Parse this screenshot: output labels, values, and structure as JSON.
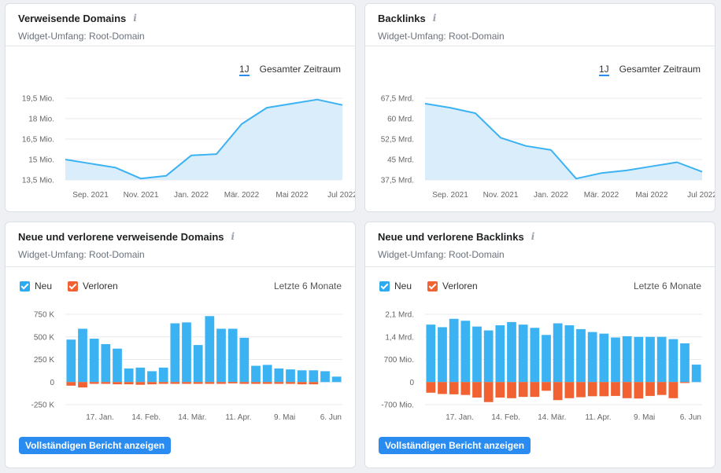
{
  "widgets": {
    "ref_domains": {
      "title": "Verweisende Domains",
      "info": "i",
      "scope": "Widget-Umfang: Root-Domain",
      "period_active": "1J",
      "period_other": "Gesamter Zeitraum"
    },
    "backlinks": {
      "title": "Backlinks",
      "info": "i",
      "scope": "Widget-Umfang: Root-Domain",
      "period_active": "1J",
      "period_other": "Gesamter Zeitraum"
    },
    "new_lost_domains": {
      "title": "Neue und verlorene verweisende Domains",
      "info": "i",
      "scope": "Widget-Umfang: Root-Domain",
      "legend_new": "Neu",
      "legend_lost": "Verloren",
      "range": "Letzte 6 Monate",
      "button": "Vollständigen Bericht anzeigen"
    },
    "new_lost_backlinks": {
      "title": "Neue und verlorene Backlinks",
      "info": "i",
      "scope": "Widget-Umfang: Root-Domain",
      "legend_new": "Neu",
      "legend_lost": "Verloren",
      "range": "Letzte 6 Monate",
      "button": "Vollständigen Bericht anzeigen"
    }
  },
  "colors": {
    "accent": "#2a8cf0",
    "line": "#3bb2f2",
    "area": "#daedfb",
    "new": "#3bb2f2",
    "lost": "#f26131"
  },
  "chart_data": [
    {
      "type": "area",
      "id": "ref_domains",
      "x": [
        "2021-08",
        "2021-09",
        "2021-10",
        "2021-11",
        "2021-12",
        "2022-01",
        "2022-02",
        "2022-03",
        "2022-04",
        "2022-05",
        "2022-06",
        "2022-07"
      ],
      "values": [
        15.0,
        14.7,
        14.4,
        13.6,
        13.8,
        15.3,
        15.4,
        17.6,
        18.8,
        19.1,
        19.4,
        19.0
      ],
      "yticks": [
        "19,5 Mio.",
        "18 Mio.",
        "16,5 Mio.",
        "15 Mio.",
        "13,5 Mio."
      ],
      "ytick_values": [
        19.5,
        18,
        16.5,
        15,
        13.5
      ],
      "ylim": [
        13.5,
        19.5
      ],
      "xticks": [
        "Sep. 2021",
        "Nov. 2021",
        "Jan. 2022",
        "Mär. 2022",
        "Mai 2022",
        "Jul 2022"
      ],
      "xtick_index": [
        1,
        3,
        5,
        7,
        9,
        11
      ]
    },
    {
      "type": "area",
      "id": "backlinks",
      "x": [
        "2021-08",
        "2021-09",
        "2021-10",
        "2021-11",
        "2021-12",
        "2022-01",
        "2022-02",
        "2022-03",
        "2022-04",
        "2022-05",
        "2022-06",
        "2022-07"
      ],
      "values": [
        65.5,
        64.0,
        62.0,
        53.0,
        50.0,
        48.5,
        38.0,
        40.0,
        41.0,
        42.5,
        44.0,
        40.5
      ],
      "yticks": [
        "67,5 Mrd.",
        "60 Mrd.",
        "52,5 Mrd.",
        "45 Mrd.",
        "37,5 Mrd."
      ],
      "ytick_values": [
        67.5,
        60,
        52.5,
        45,
        37.5
      ],
      "ylim": [
        37.5,
        67.5
      ],
      "xticks": [
        "Sep. 2021",
        "Nov. 2021",
        "Jan. 2022",
        "Mär. 2022",
        "Mai 2022",
        "Jul 2022"
      ],
      "xtick_index": [
        1,
        3,
        5,
        7,
        9,
        11
      ]
    },
    {
      "type": "bar",
      "id": "new_lost_domains",
      "series": [
        {
          "name": "Neu",
          "values": [
            470,
            590,
            480,
            420,
            370,
            150,
            160,
            120,
            160,
            650,
            660,
            410,
            730,
            590,
            590,
            490,
            180,
            190,
            150,
            140,
            130,
            130,
            120,
            60
          ]
        },
        {
          "name": "Verloren",
          "values": [
            -40,
            -60,
            -20,
            -20,
            -25,
            -25,
            -30,
            -25,
            -20,
            -20,
            -20,
            -20,
            -20,
            -20,
            -15,
            -20,
            -20,
            -20,
            -20,
            -20,
            -25,
            -25,
            0,
            0
          ]
        }
      ],
      "yticks": [
        "750 K",
        "500 K",
        "250 K",
        "0",
        "-250 K"
      ],
      "ytick_values": [
        750,
        500,
        250,
        0,
        -250
      ],
      "ylim": [
        -250,
        750
      ],
      "xticks": [
        "17. Jan.",
        "14. Feb.",
        "14. Mär.",
        "11. Apr.",
        "9. Mai",
        "6. Jun"
      ],
      "xtick_index": [
        2.5,
        6.5,
        10.5,
        14.5,
        18.5,
        22.5
      ]
    },
    {
      "type": "bar",
      "id": "new_lost_backlinks",
      "series": [
        {
          "name": "Neu",
          "values": [
            1780,
            1700,
            1960,
            1900,
            1720,
            1600,
            1760,
            1860,
            1780,
            1680,
            1460,
            1820,
            1760,
            1640,
            1550,
            1500,
            1380,
            1420,
            1400,
            1400,
            1400,
            1330,
            1200,
            540
          ]
        },
        {
          "name": "Verloren",
          "values": [
            -330,
            -370,
            -380,
            -400,
            -480,
            -620,
            -480,
            -500,
            -460,
            -460,
            -270,
            -560,
            -500,
            -470,
            -440,
            -440,
            -430,
            -500,
            -510,
            -430,
            -400,
            -500,
            -30,
            0
          ]
        }
      ],
      "yticks": [
        "2,1 Mrd.",
        "1,4 Mrd.",
        "700 Mio.",
        "0",
        "-700 Mio."
      ],
      "ytick_values": [
        2100,
        1400,
        700,
        0,
        -700
      ],
      "ylim": [
        -700,
        2100
      ],
      "xticks": [
        "17. Jan.",
        "14. Feb.",
        "14. Mär.",
        "11. Apr.",
        "9. Mai",
        "6. Jun"
      ],
      "xtick_index": [
        2.5,
        6.5,
        10.5,
        14.5,
        18.5,
        22.5
      ]
    }
  ]
}
